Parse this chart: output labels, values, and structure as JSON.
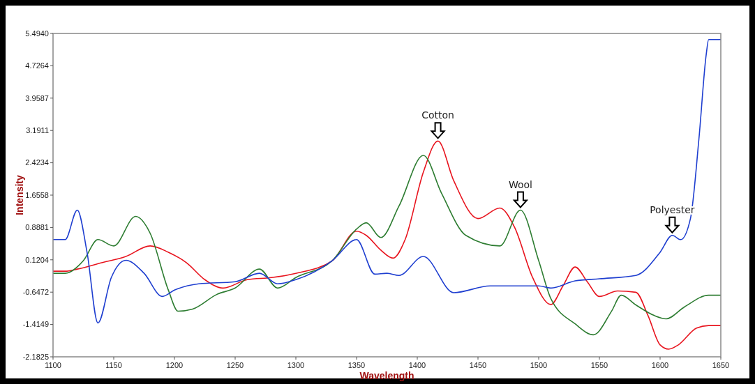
{
  "chart_data": {
    "type": "line",
    "xlabel": "Wavelength",
    "ylabel": "Intensity",
    "xlim": [
      1100,
      1650
    ],
    "xticks": [
      1100,
      1150,
      1200,
      1250,
      1300,
      1350,
      1400,
      1450,
      1500,
      1550,
      1600,
      1650
    ],
    "ylim": [
      -2.1825,
      5.494
    ],
    "yticks": [
      {
        "value": 5.494,
        "label": "5.4940"
      },
      4.7264,
      3.9587,
      3.1911,
      2.4234,
      1.6558,
      0.8881,
      0.1204,
      -0.6472,
      -1.4149,
      -2.1825
    ],
    "grid": false,
    "line_style": "solid",
    "marker": "none",
    "series": [
      {
        "color": "#e8141e",
        "x": [
          1100,
          1110,
          1120,
          1140,
          1160,
          1180,
          1195,
          1210,
          1225,
          1240,
          1260,
          1280,
          1300,
          1330,
          1350,
          1358,
          1370,
          1380,
          1390,
          1405,
          1417,
          1430,
          1450,
          1468,
          1480,
          1495,
          1510,
          1520,
          1530,
          1540,
          1550,
          1565,
          1580,
          1590,
          1600,
          1607,
          1615,
          1630,
          1640,
          1650
        ],
        "values": [
          -0.15,
          -0.15,
          -0.1,
          0.05,
          0.2,
          0.45,
          0.3,
          0.05,
          -0.35,
          -0.55,
          -0.35,
          -0.3,
          -0.2,
          0.1,
          0.8,
          0.7,
          0.35,
          0.16,
          0.6,
          2.2,
          2.94,
          2.0,
          1.1,
          1.35,
          0.9,
          -0.3,
          -0.94,
          -0.5,
          -0.05,
          -0.4,
          -0.75,
          -0.62,
          -0.65,
          -1.2,
          -1.9,
          -2.0,
          -1.9,
          -1.5,
          -1.44,
          -1.44
        ]
      },
      {
        "color": "#2e7d32",
        "x": [
          1100,
          1110,
          1125,
          1137,
          1150,
          1168,
          1180,
          1195,
          1203,
          1215,
          1235,
          1250,
          1270,
          1285,
          1300,
          1330,
          1350,
          1358,
          1370,
          1385,
          1405,
          1420,
          1440,
          1468,
          1485,
          1500,
          1510,
          1530,
          1545,
          1560,
          1568,
          1580,
          1595,
          1605,
          1620,
          1640,
          1650
        ],
        "values": [
          -0.2,
          -0.2,
          0.1,
          0.6,
          0.45,
          1.15,
          0.75,
          -0.6,
          -1.1,
          -1.05,
          -0.7,
          -0.55,
          -0.1,
          -0.55,
          -0.3,
          0.1,
          0.85,
          1.0,
          0.65,
          1.4,
          2.6,
          1.7,
          0.7,
          0.45,
          1.3,
          0.1,
          -0.8,
          -1.4,
          -1.66,
          -1.1,
          -0.72,
          -0.95,
          -1.2,
          -1.28,
          -1.0,
          -0.72,
          -0.72
        ]
      },
      {
        "color": "#1f3fd0",
        "x": [
          1100,
          1110,
          1120,
          1128,
          1137,
          1148,
          1160,
          1175,
          1190,
          1200,
          1220,
          1250,
          1270,
          1285,
          1300,
          1330,
          1350,
          1365,
          1375,
          1385,
          1405,
          1430,
          1460,
          1500,
          1510,
          1530,
          1550,
          1580,
          1600,
          1610,
          1617,
          1625,
          1632,
          1638,
          1640,
          1650
        ],
        "values": [
          0.6,
          0.6,
          1.3,
          0.3,
          -1.38,
          -0.3,
          0.11,
          -0.2,
          -0.75,
          -0.6,
          -0.45,
          -0.4,
          -0.2,
          -0.45,
          -0.35,
          0.1,
          0.6,
          -0.22,
          -0.2,
          -0.25,
          0.2,
          -0.66,
          -0.5,
          -0.5,
          -0.55,
          -0.38,
          -0.33,
          -0.25,
          0.3,
          0.7,
          0.6,
          1.1,
          3.0,
          5.0,
          5.35,
          5.35
        ]
      }
    ],
    "annotations": [
      {
        "text": "Cotton",
        "x": 1417,
        "y": 2.94
      },
      {
        "text": "Wool",
        "x": 1485,
        "y": 1.3
      },
      {
        "text": "Polyester",
        "x": 1610,
        "y": 0.7
      }
    ]
  }
}
